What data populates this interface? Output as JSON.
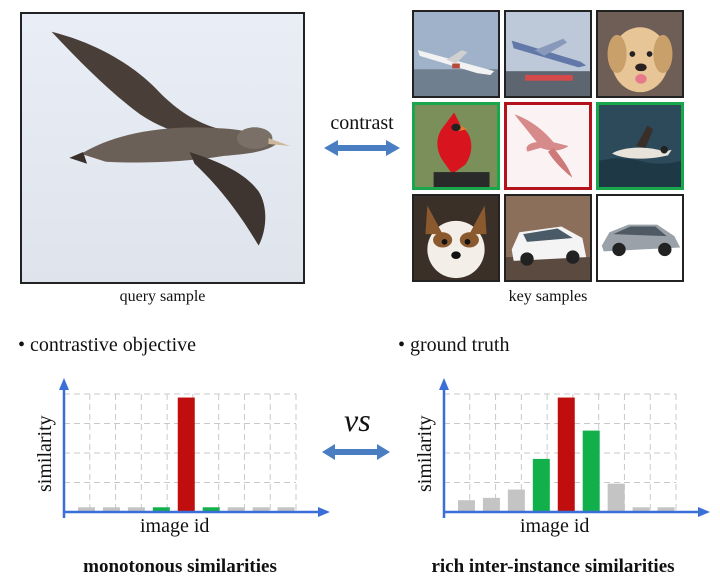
{
  "top": {
    "query_caption": "query sample",
    "key_caption": "key samples",
    "contrast_label": "contrast"
  },
  "key_samples": [
    {
      "subject": "airplane",
      "border": "#222222"
    },
    {
      "subject": "airplane",
      "border": "#222222"
    },
    {
      "subject": "dog",
      "border": "#222222"
    },
    {
      "subject": "cardinal",
      "border": "#1aa64a"
    },
    {
      "subject": "bird",
      "border": "#b3131b"
    },
    {
      "subject": "duck",
      "border": "#1aa64a"
    },
    {
      "subject": "dog",
      "border": "#222222"
    },
    {
      "subject": "car",
      "border": "#222222"
    },
    {
      "subject": "car",
      "border": "#222222"
    }
  ],
  "colors": {
    "positive": "#12b04a",
    "target": "#c00d0d",
    "negative": "#c4c4c4",
    "axis": "#3a6fd8",
    "arrow": "#4a7ec3"
  },
  "vs_label": "vs",
  "chart_data": [
    {
      "type": "bar",
      "title": "contrastive objective",
      "xlabel": "image id",
      "ylabel": "similarity",
      "caption": "monotonous similarities",
      "ylim": [
        0,
        1
      ],
      "grid": true,
      "values": [
        0.04,
        0.04,
        0.04,
        0.04,
        0.97,
        0.04,
        0.04,
        0.04,
        0.04
      ],
      "kinds": [
        "negative",
        "negative",
        "negative",
        "positive",
        "target",
        "positive",
        "negative",
        "negative",
        "negative"
      ]
    },
    {
      "type": "bar",
      "title": "ground truth",
      "xlabel": "image id",
      "ylabel": "similarity",
      "caption": "rich inter-instance similarities",
      "ylim": [
        0,
        1
      ],
      "grid": true,
      "values": [
        0.1,
        0.12,
        0.19,
        0.45,
        0.97,
        0.69,
        0.24,
        0.04,
        0.04
      ],
      "kinds": [
        "negative",
        "negative",
        "negative",
        "positive",
        "target",
        "positive",
        "negative",
        "negative",
        "negative"
      ]
    }
  ]
}
